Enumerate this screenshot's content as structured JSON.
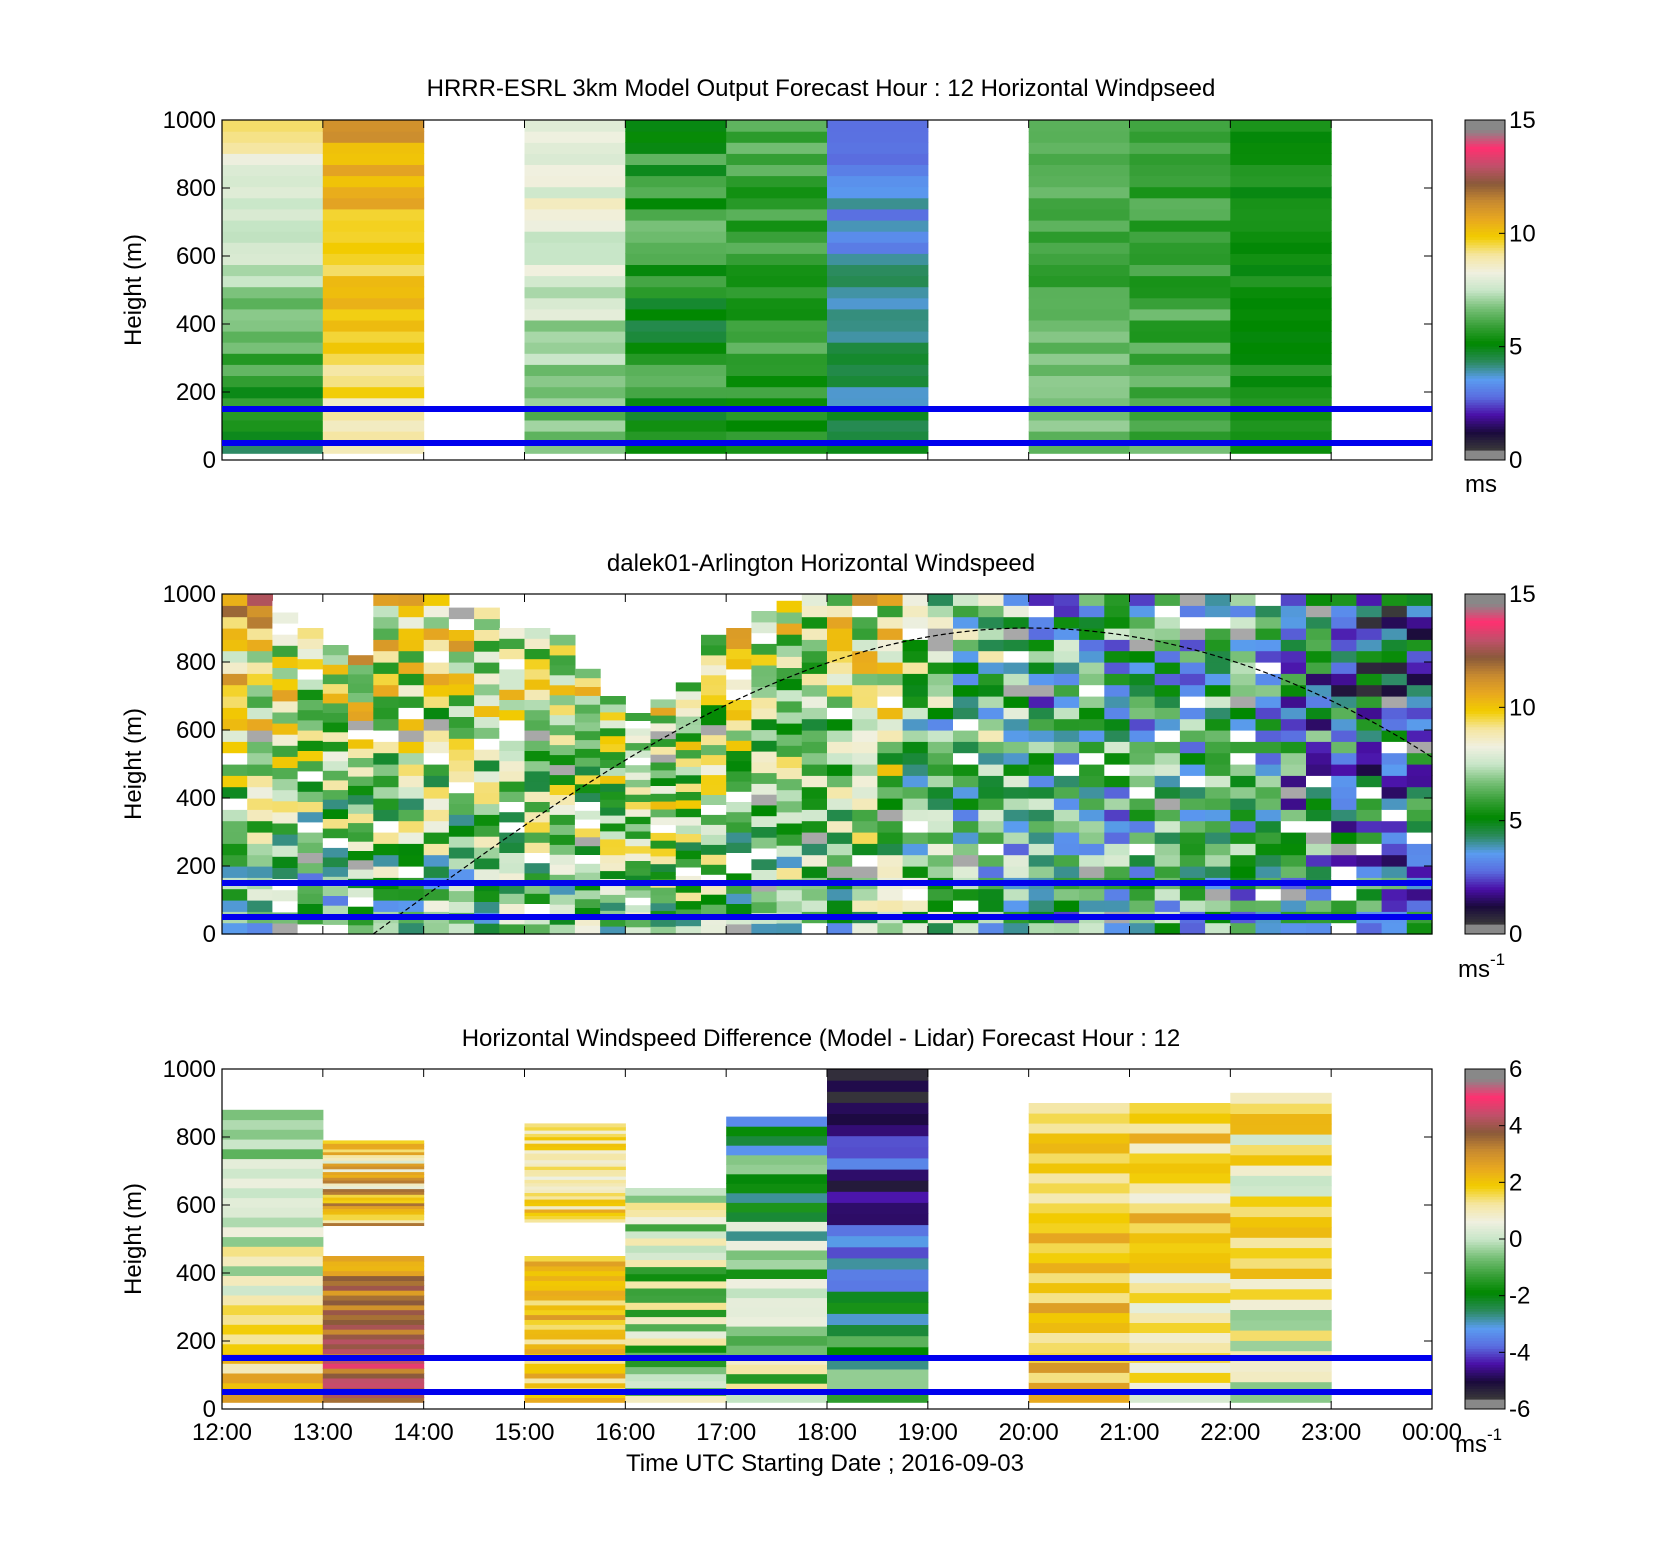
{
  "figure": {
    "xlabel": "Time UTC  Starting Date ; 2016-09-03",
    "x_tick_labels": [
      "12:00",
      "13:00",
      "14:00",
      "15:00",
      "16:00",
      "17:00",
      "18:00",
      "19:00",
      "20:00",
      "21:00",
      "22:00",
      "23:00",
      "00:00"
    ],
    "y_tick_labels": [
      "0",
      "200",
      "400",
      "600",
      "800",
      "1000"
    ],
    "ylabel": "Height (m)",
    "reference_lines_m": [
      50,
      150
    ],
    "reference_line_color": "#0000ee",
    "colormap_stops": [
      "#3a3a3a",
      "#1a0a3c",
      "#4a10a8",
      "#5a6ee0",
      "#5a9cf0",
      "#2a8a5a",
      "#008800",
      "#38a038",
      "#78c078",
      "#c8e6c8",
      "#f0f0e0",
      "#f5e6a0",
      "#f2cc00",
      "#e8a820",
      "#c88a30",
      "#8a5a3a",
      "#c0506a",
      "#ff3070",
      "#888888"
    ]
  },
  "chart_data": [
    {
      "type": "heatmap",
      "title": "HRRR-ESRL 3km Model Output   Forecast Hour : 12 Horizontal Windpseed",
      "xlim": [
        12,
        24
      ],
      "ylim": [
        0,
        1000
      ],
      "colorbar": {
        "range": [
          0,
          15
        ],
        "ticks": [
          "0",
          "5",
          "10",
          "15"
        ],
        "unit": "ms"
      },
      "columns": [
        {
          "hour": 12,
          "low_m": 20,
          "high_m": 1000,
          "bottom": 4.5,
          "top": 9.2,
          "texture": 0.05
        },
        {
          "hour": 13,
          "low_m": 20,
          "high_m": 1000,
          "bottom": 9.0,
          "top": 11.0,
          "texture": 0.05
        },
        {
          "hour": 15,
          "low_m": 20,
          "high_m": 1000,
          "bottom": 6.5,
          "top": 8.6,
          "texture": 0.05
        },
        {
          "hour": 16,
          "low_m": 20,
          "high_m": 1000,
          "bottom": 5.0,
          "top": 6.0,
          "texture": 0.08
        },
        {
          "hour": 17,
          "low_m": 20,
          "high_m": 1000,
          "bottom": 5.5,
          "top": 6.0,
          "texture": 0.05
        },
        {
          "hour": 18,
          "low_m": 20,
          "high_m": 1000,
          "bottom": 4.5,
          "top": 2.8,
          "texture": 0.05
        },
        {
          "hour": 20,
          "low_m": 20,
          "high_m": 1000,
          "bottom": 6.5,
          "top": 5.8,
          "texture": 0.04
        },
        {
          "hour": 21,
          "low_m": 20,
          "high_m": 1000,
          "bottom": 6.2,
          "top": 5.7,
          "texture": 0.04
        },
        {
          "hour": 22,
          "low_m": 20,
          "high_m": 1000,
          "bottom": 5.4,
          "top": 5.2,
          "texture": 0.03
        }
      ]
    },
    {
      "type": "heatmap",
      "title": "dalek01-Arlington  Horizontal Windspeed",
      "xlim": [
        12,
        24
      ],
      "ylim": [
        0,
        1000
      ],
      "colorbar": {
        "range": [
          0,
          15
        ],
        "ticks": [
          "0",
          "5",
          "10",
          "15"
        ],
        "unit": "ms",
        "unit_exponent": "-1"
      },
      "columns": [
        {
          "hour": 12.0,
          "low_m": 0,
          "high_m": 1000,
          "bottom": 5.0,
          "top": 10.0,
          "texture": 0.22
        },
        {
          "hour": 12.25,
          "low_m": 0,
          "high_m": 1000,
          "bottom": 5.0,
          "top": 10.5,
          "texture": 0.22
        },
        {
          "hour": 12.5,
          "low_m": 0,
          "high_m": 980,
          "bottom": 5.0,
          "top": 9.5,
          "texture": 0.22
        },
        {
          "hour": 12.75,
          "low_m": 0,
          "high_m": 900,
          "bottom": 5.0,
          "top": 9.0,
          "texture": 0.22
        },
        {
          "hour": 13.0,
          "low_m": 0,
          "high_m": 850,
          "bottom": 5.0,
          "top": 9.5,
          "texture": 0.22
        },
        {
          "hour": 13.25,
          "low_m": 0,
          "high_m": 820,
          "bottom": 5.2,
          "top": 9.0,
          "texture": 0.22
        },
        {
          "hour": 13.5,
          "low_m": 0,
          "high_m": 1000,
          "bottom": 5.2,
          "top": 9.5,
          "texture": 0.22
        },
        {
          "hour": 13.75,
          "low_m": 0,
          "high_m": 1000,
          "bottom": 5.5,
          "top": 9.2,
          "texture": 0.22
        },
        {
          "hour": 14.0,
          "low_m": 0,
          "high_m": 1000,
          "bottom": 5.5,
          "top": 9.0,
          "texture": 0.22
        },
        {
          "hour": 14.25,
          "low_m": 0,
          "high_m": 960,
          "bottom": 5.6,
          "top": 9.0,
          "texture": 0.22
        },
        {
          "hour": 14.5,
          "low_m": 0,
          "high_m": 960,
          "bottom": 5.8,
          "top": 8.8,
          "texture": 0.22
        },
        {
          "hour": 14.75,
          "low_m": 0,
          "high_m": 900,
          "bottom": 6.0,
          "top": 8.8,
          "texture": 0.22
        },
        {
          "hour": 15.0,
          "low_m": 0,
          "high_m": 900,
          "bottom": 6.0,
          "top": 8.5,
          "texture": 0.22
        },
        {
          "hour": 15.25,
          "low_m": 0,
          "high_m": 880,
          "bottom": 6.0,
          "top": 8.5,
          "texture": 0.22
        },
        {
          "hour": 15.5,
          "low_m": 0,
          "high_m": 780,
          "bottom": 6.3,
          "top": 8.2,
          "texture": 0.22
        },
        {
          "hour": 15.75,
          "low_m": 0,
          "high_m": 700,
          "bottom": 6.5,
          "top": 8.0,
          "texture": 0.22
        },
        {
          "hour": 16.0,
          "low_m": 0,
          "high_m": 650,
          "bottom": 6.5,
          "top": 8.5,
          "texture": 0.22
        },
        {
          "hour": 16.25,
          "low_m": 0,
          "high_m": 690,
          "bottom": 6.3,
          "top": 8.5,
          "texture": 0.22
        },
        {
          "hour": 16.5,
          "low_m": 0,
          "high_m": 740,
          "bottom": 6.0,
          "top": 8.5,
          "texture": 0.22
        },
        {
          "hour": 16.75,
          "low_m": 0,
          "high_m": 880,
          "bottom": 6.0,
          "top": 8.5,
          "texture": 0.22
        },
        {
          "hour": 17.0,
          "low_m": 0,
          "high_m": 900,
          "bottom": 6.0,
          "top": 8.5,
          "texture": 0.22
        },
        {
          "hour": 17.25,
          "low_m": 0,
          "high_m": 950,
          "bottom": 6.0,
          "top": 8.5,
          "texture": 0.22
        },
        {
          "hour": 17.5,
          "low_m": 0,
          "high_m": 980,
          "bottom": 6.0,
          "top": 8.3,
          "texture": 0.22
        },
        {
          "hour": 17.75,
          "low_m": 0,
          "high_m": 1000,
          "bottom": 6.0,
          "top": 8.5,
          "texture": 0.22
        },
        {
          "hour": 18.0,
          "low_m": 0,
          "high_m": 1000,
          "bottom": 6.0,
          "top": 8.8,
          "texture": 0.22
        },
        {
          "hour": 18.25,
          "low_m": 0,
          "high_m": 1000,
          "bottom": 6.5,
          "top": 8.8,
          "texture": 0.22
        },
        {
          "hour": 18.5,
          "low_m": 0,
          "high_m": 1000,
          "bottom": 6.5,
          "top": 8.5,
          "texture": 0.22
        },
        {
          "hour": 18.75,
          "low_m": 0,
          "high_m": 1000,
          "bottom": 6.5,
          "top": 6.5,
          "texture": 0.22
        },
        {
          "hour": 19.0,
          "low_m": 0,
          "high_m": 1000,
          "bottom": 6.0,
          "top": 6.0,
          "texture": 0.22
        },
        {
          "hour": 19.25,
          "low_m": 0,
          "high_m": 1000,
          "bottom": 5.5,
          "top": 6.0,
          "texture": 0.22
        },
        {
          "hour": 19.5,
          "low_m": 0,
          "high_m": 1000,
          "bottom": 5.5,
          "top": 6.5,
          "texture": 0.22
        },
        {
          "hour": 19.75,
          "low_m": 0,
          "high_m": 1000,
          "bottom": 5.2,
          "top": 6.0,
          "texture": 0.22
        },
        {
          "hour": 20.0,
          "low_m": 0,
          "high_m": 1000,
          "bottom": 5.0,
          "top": 4.8,
          "texture": 0.22
        },
        {
          "hour": 20.25,
          "low_m": 0,
          "high_m": 1000,
          "bottom": 5.0,
          "top": 5.0,
          "texture": 0.22
        },
        {
          "hour": 20.5,
          "low_m": 0,
          "high_m": 1000,
          "bottom": 5.0,
          "top": 5.0,
          "texture": 0.22
        },
        {
          "hour": 20.75,
          "low_m": 0,
          "high_m": 1000,
          "bottom": 5.0,
          "top": 5.0,
          "texture": 0.22
        },
        {
          "hour": 21.0,
          "low_m": 0,
          "high_m": 1000,
          "bottom": 5.0,
          "top": 5.0,
          "texture": 0.22
        },
        {
          "hour": 21.25,
          "low_m": 0,
          "high_m": 1000,
          "bottom": 5.2,
          "top": 5.0,
          "texture": 0.22
        },
        {
          "hour": 21.5,
          "low_m": 0,
          "high_m": 1000,
          "bottom": 5.0,
          "top": 5.0,
          "texture": 0.22
        },
        {
          "hour": 21.75,
          "low_m": 0,
          "high_m": 1000,
          "bottom": 5.0,
          "top": 5.0,
          "texture": 0.22
        },
        {
          "hour": 22.0,
          "low_m": 0,
          "high_m": 1000,
          "bottom": 5.0,
          "top": 4.8,
          "texture": 0.22
        },
        {
          "hour": 22.25,
          "low_m": 0,
          "high_m": 1000,
          "bottom": 5.0,
          "top": 4.5,
          "texture": 0.22
        },
        {
          "hour": 22.5,
          "low_m": 0,
          "high_m": 1000,
          "bottom": 4.8,
          "top": 4.0,
          "texture": 0.22
        },
        {
          "hour": 22.75,
          "low_m": 0,
          "high_m": 1000,
          "bottom": 4.8,
          "top": 3.8,
          "texture": 0.22
        },
        {
          "hour": 23.0,
          "low_m": 0,
          "high_m": 1000,
          "bottom": 4.5,
          "top": 3.2,
          "texture": 0.22
        },
        {
          "hour": 23.25,
          "low_m": 0,
          "high_m": 1000,
          "bottom": 4.2,
          "top": 2.8,
          "texture": 0.22
        },
        {
          "hour": 23.5,
          "low_m": 0,
          "high_m": 1000,
          "bottom": 4.5,
          "top": 2.6,
          "texture": 0.22
        },
        {
          "hour": 23.75,
          "low_m": 0,
          "high_m": 1000,
          "bottom": 4.5,
          "top": 2.5,
          "texture": 0.22
        }
      ],
      "column_width_h": 0.25,
      "boundary_layer_curve": {
        "start_hour": 13.5,
        "peak_hour": 20.0,
        "peak_m": 900,
        "end_hour": 24.0,
        "end_m": 520
      }
    },
    {
      "type": "heatmap",
      "title": "Horizontal Windspeed Difference (Model - Lidar) Forecast Hour : 12",
      "xlim": [
        12,
        24
      ],
      "ylim": [
        0,
        1000
      ],
      "colorbar": {
        "range": [
          -6,
          6
        ],
        "ticks": [
          "-6",
          "-4",
          "-2",
          "0",
          "2",
          "4",
          "6"
        ],
        "unit": "ms",
        "unit_exponent": "-1"
      },
      "columns": [
        {
          "hour": 12,
          "low_m": 20,
          "high_m": 880,
          "bottom": 2.0,
          "top": -1.0,
          "texture": 0.1
        },
        {
          "hour": 13,
          "low_m": 20,
          "high_m": 450,
          "bottom": 4.5,
          "top": 3.0,
          "texture": 0.08
        },
        {
          "hour": 13,
          "low_m": 540,
          "high_m": 790,
          "bottom": 2.5,
          "top": 1.5,
          "texture": 0.14
        },
        {
          "hour": 15,
          "low_m": 20,
          "high_m": 450,
          "bottom": 2.2,
          "top": 2.0,
          "texture": 0.08
        },
        {
          "hour": 15,
          "low_m": 550,
          "high_m": 840,
          "bottom": 1.8,
          "top": 1.2,
          "texture": 0.08
        },
        {
          "hour": 16,
          "low_m": 20,
          "high_m": 650,
          "bottom": -0.6,
          "top": 0.3,
          "texture": 0.15
        },
        {
          "hour": 17,
          "low_m": 20,
          "high_m": 860,
          "bottom": 0.4,
          "top": -2.2,
          "texture": 0.15
        },
        {
          "hour": 18,
          "low_m": 20,
          "high_m": 1000,
          "bottom": -1.2,
          "top": -6.2,
          "texture": 0.1
        },
        {
          "hour": 20,
          "low_m": 20,
          "high_m": 900,
          "bottom": 2.2,
          "top": 2.0,
          "texture": 0.08
        },
        {
          "hour": 21,
          "low_m": 20,
          "high_m": 900,
          "bottom": 0.8,
          "top": 2.2,
          "texture": 0.1
        },
        {
          "hour": 22,
          "low_m": 20,
          "high_m": 930,
          "bottom": 0.5,
          "top": 1.6,
          "texture": 0.12
        }
      ]
    }
  ]
}
